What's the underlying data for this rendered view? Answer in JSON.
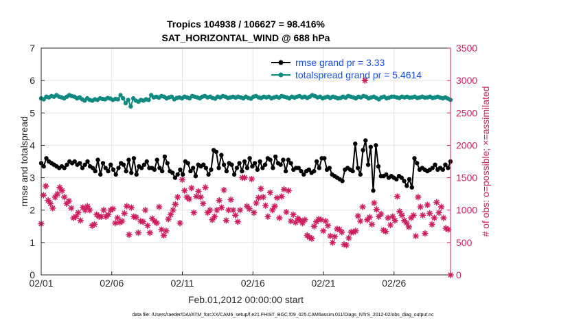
{
  "chart_data": {
    "type": "line",
    "title": "Tropics 104938 / 106627 = 98.416%",
    "subtitle": "SAT_HORIZONTAL_WIND @ 688 hPa",
    "xlabel": "Feb.01,2012 00:00:00 start",
    "ylabel_left": "rmse and totalspread",
    "ylabel_right": "# of obs: o=possible; ×=assimilated",
    "footer": "data file: /Users/raeder/DAI/ATM_forcXX/CAM6_setup/f.e21.FHIST_BGC.f09_025.CAM6assim.011/Diags_NTrS_2012-02/obs_diag_output.nc",
    "x_ticks": [
      {
        "day": 1,
        "label": "02/01"
      },
      {
        "day": 6,
        "label": "02/06"
      },
      {
        "day": 11,
        "label": "02/11"
      },
      {
        "day": 16,
        "label": "02/16"
      },
      {
        "day": 21,
        "label": "02/21"
      },
      {
        "day": 26,
        "label": "02/26"
      }
    ],
    "xlim": [
      1,
      30
    ],
    "ylim_left": [
      0,
      7
    ],
    "yticks_left": [
      "0",
      "1",
      "2",
      "3",
      "4",
      "5",
      "6",
      "7"
    ],
    "ylim_right": [
      0,
      3500
    ],
    "yticks_right": [
      "0",
      "500",
      "1000",
      "1500",
      "2000",
      "2500",
      "3000",
      "3500"
    ],
    "legend": [
      {
        "label": "rmse grand pr = 3.33",
        "series": "rmse"
      },
      {
        "label": "totalspread grand pr = 5.4614",
        "series": "totalspread"
      }
    ],
    "colors": {
      "rmse": "#000000",
      "totalspread": "#0f8a80",
      "obs": "#cc1f5e",
      "legend_text": "#1a4fe0",
      "right_axis": "#cc1f5e"
    },
    "series": [
      {
        "name": "rmse",
        "axis": "left",
        "values": [
          3.45,
          3.35,
          3.6,
          3.5,
          3.45,
          3.4,
          3.35,
          3.3,
          3.35,
          3.3,
          3.4,
          3.5,
          3.45,
          3.5,
          3.4,
          3.45,
          3.3,
          3.4,
          3.5,
          3.35,
          3.3,
          3.2,
          3.55,
          3.1,
          3.45,
          3.3,
          3.2,
          3.4,
          3.25,
          3.1,
          3.3,
          3.45,
          3.4,
          3.2,
          3.55,
          3.15,
          3.6,
          3.1,
          3.35,
          3.3,
          3.4,
          3.5,
          3.3,
          3.3,
          3.25,
          3.55,
          3.3,
          3.2,
          3.65,
          3.45,
          3.2,
          3.15,
          3.0,
          3.1,
          3.25,
          3.1,
          3.5,
          3.45,
          3.2,
          3.3,
          3.05,
          3.4,
          3.35,
          3.4,
          3.3,
          3.1,
          3.25,
          3.85,
          3.8,
          3.3,
          3.7,
          3.4,
          3.2,
          3.45,
          3.4,
          3.1,
          3.3,
          3.45,
          3.2,
          3.5,
          3.3,
          3.6,
          3.35,
          3.45,
          3.25,
          3.5,
          3.3,
          3.4,
          3.6,
          3.55,
          3.3,
          3.65,
          3.45,
          3.4,
          3.55,
          3.2,
          3.55,
          3.45,
          3.25,
          3.3,
          3.3,
          3.2,
          3.1,
          3.2,
          3.25,
          3.15,
          3.2,
          3.5,
          3.3,
          3.6,
          3.6,
          3.25,
          3.3,
          3.1,
          3.05,
          3.0,
          2.95,
          2.9,
          3.25,
          3.3,
          3.25,
          3.2,
          4.05,
          3.3,
          3.1,
          3.85,
          4.15,
          3.4,
          3.95,
          2.6,
          4.0,
          3.35,
          3.05,
          3.05,
          3.1,
          3.0,
          3.05,
          3.0,
          2.95,
          3.05,
          3.0,
          2.9,
          2.75,
          2.95,
          2.7,
          3.6,
          3.45,
          3.25,
          3.3,
          3.25,
          3.2,
          3.25,
          3.3,
          3.4,
          3.25,
          3.3,
          3.25,
          3.4,
          3.3,
          3.5
        ]
      },
      {
        "name": "totalspread",
        "axis": "left",
        "values": [
          5.45,
          5.42,
          5.5,
          5.48,
          5.52,
          5.5,
          5.55,
          5.5,
          5.48,
          5.45,
          5.5,
          5.55,
          5.52,
          5.5,
          5.45,
          5.48,
          5.42,
          5.38,
          5.45,
          5.4,
          5.38,
          5.42,
          5.4,
          5.45,
          5.43,
          5.42,
          5.46,
          5.44,
          5.4,
          5.43,
          5.42,
          5.55,
          5.45,
          5.3,
          5.4,
          5.2,
          5.45,
          5.38,
          5.35,
          5.4,
          5.38,
          5.42,
          5.4,
          5.55,
          5.48,
          5.5,
          5.47,
          5.52,
          5.5,
          5.45,
          5.48,
          5.5,
          5.42,
          5.46,
          5.48,
          5.45,
          5.5,
          5.48,
          5.45,
          5.52,
          5.5,
          5.48,
          5.45,
          5.5,
          5.52,
          5.48,
          5.5,
          5.46,
          5.44,
          5.5,
          5.48,
          5.52,
          5.5,
          5.46,
          5.48,
          5.5,
          5.47,
          5.5,
          5.48,
          5.45,
          5.5,
          5.46,
          5.44,
          5.5,
          5.52,
          5.48,
          5.46,
          5.5,
          5.48,
          5.5,
          5.45,
          5.48,
          5.5,
          5.47,
          5.52,
          5.5,
          5.48,
          5.45,
          5.5,
          5.47,
          5.5,
          5.52,
          5.48,
          5.5,
          5.46,
          5.5,
          5.55,
          5.52,
          5.48,
          5.5,
          5.45,
          5.48,
          5.5,
          5.46,
          5.5,
          5.48,
          5.45,
          5.46,
          5.5,
          5.47,
          5.52,
          5.5,
          5.48,
          5.45,
          5.5,
          5.48,
          5.52,
          5.5,
          5.45,
          5.48,
          5.5,
          5.46,
          5.42,
          5.48,
          5.5,
          5.45,
          5.47,
          5.5,
          5.5,
          5.48,
          5.46,
          5.5,
          5.48,
          5.5,
          5.47,
          5.48,
          5.5,
          5.46,
          5.48,
          5.5,
          5.47,
          5.48,
          5.5,
          5.46,
          5.48,
          5.5,
          5.47,
          5.45,
          5.48,
          5.44,
          5.4
        ]
      },
      {
        "name": "obs_assimilated",
        "axis": "right",
        "values": [
          790,
          1230,
          1370,
          1150,
          1100,
          1030,
          1200,
          1250,
          1350,
          1300,
          1200,
          1100,
          1140,
          1030,
          880,
          900,
          960,
          840,
          1040,
          1000,
          1060,
          1000,
          760,
          780,
          930,
          900,
          900,
          1000,
          900,
          930,
          1000,
          1020,
          800,
          880,
          810,
          830,
          950,
          1060,
          620,
          1040,
          900,
          890,
          650,
          830,
          820,
          1000,
          760,
          650,
          870,
          830,
          800,
          1050,
          700,
          610,
          680,
          860,
          930,
          1000,
          1090,
          1200,
          800,
          1470,
          1300,
          1200,
          1170,
          1340,
          960,
          1210,
          1290,
          1200,
          1100,
          1350,
          960,
          1000,
          850,
          900,
          1000,
          1150,
          1040,
          1310,
          840,
          1000,
          1160,
          1000,
          920,
          820,
          1000,
          1500,
          1500,
          1060,
          1020,
          1480,
          960,
          1110,
          1190,
          1330,
          1200,
          1070,
          900,
          1270,
          1000,
          1060,
          1190,
          880,
          1210,
          1320,
          970,
          1300,
          830,
          930,
          810,
          870,
          840,
          800,
          850,
          610,
          580,
          560,
          750,
          820,
          860,
          850,
          680,
          830,
          760,
          600,
          500,
          590,
          710,
          700,
          660,
          470,
          460,
          570,
          660,
          660,
          680,
          910,
          830,
          1050,
          3000,
          850,
          890,
          780,
          1110,
          1010,
          900,
          940,
          690,
          670,
          880,
          770,
          900,
          840,
          1210,
          980,
          920,
          840,
          800,
          740,
          880,
          920,
          600,
          1200,
          1050,
          920,
          640,
          1080,
          950,
          780,
          880,
          1120,
          960,
          1050,
          880,
          720,
          700,
          0
        ]
      }
    ]
  }
}
